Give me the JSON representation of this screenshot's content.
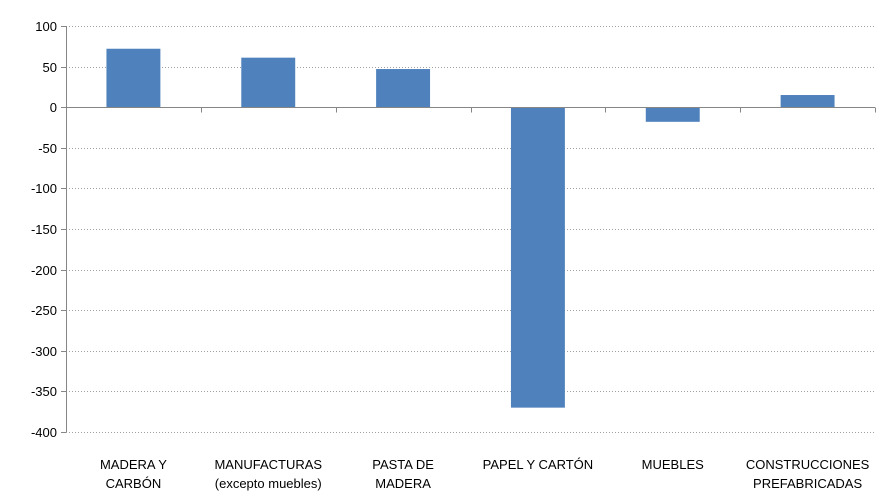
{
  "chart_data": {
    "type": "bar",
    "categories": [
      [
        "MADERA Y",
        "CARBÓN"
      ],
      [
        "MANUFACTURAS",
        "(excepto muebles)"
      ],
      [
        "PASTA DE",
        "MADERA"
      ],
      [
        "PAPEL Y CARTÓN"
      ],
      [
        "MUEBLES"
      ],
      [
        "CONSTRUCCIONES",
        "PREFABRICADAS"
      ]
    ],
    "values": [
      72,
      61,
      47,
      -370,
      -18,
      15
    ],
    "ylim": [
      -400,
      100
    ],
    "yticks": [
      100,
      50,
      0,
      -50,
      -100,
      -150,
      -200,
      -250,
      -300,
      -350,
      -400
    ],
    "ytick_labels": [
      "100",
      "50",
      "0",
      "-50",
      "-100",
      "-150",
      "-200",
      "-250",
      "-300",
      "-350",
      "-400"
    ],
    "grid": true,
    "bar_color": "#4F81BD",
    "title": "",
    "xlabel": "",
    "ylabel": ""
  }
}
